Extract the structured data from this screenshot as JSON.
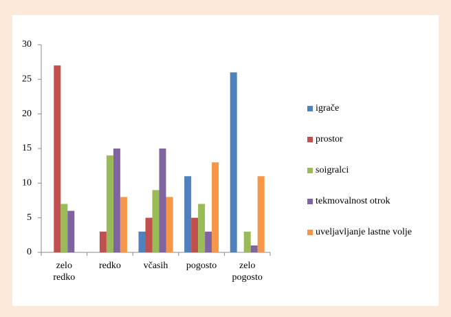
{
  "chart_data": {
    "type": "bar",
    "categories": [
      "zelo redko",
      "redko",
      "včasih",
      "pogosto",
      "zelo pogosto"
    ],
    "series": [
      {
        "name": "igrače",
        "color": "#4f81bd",
        "values": [
          0,
          0,
          3,
          11,
          26
        ]
      },
      {
        "name": "prostor",
        "color": "#c0504d",
        "values": [
          27,
          3,
          5,
          5,
          0
        ]
      },
      {
        "name": "soigralci",
        "color": "#9bbb59",
        "values": [
          7,
          14,
          9,
          7,
          3
        ]
      },
      {
        "name": "tekmovalnost otrok",
        "color": "#8064a2",
        "values": [
          6,
          15,
          15,
          3,
          1
        ]
      },
      {
        "name": "uveljavljanje lastne volje",
        "color": "#f79646",
        "values": [
          0,
          8,
          8,
          13,
          11
        ]
      }
    ],
    "ylim": [
      0,
      30
    ],
    "yticks": [
      0,
      5,
      10,
      15,
      20,
      25,
      30
    ],
    "grid": false,
    "legend": "right"
  }
}
